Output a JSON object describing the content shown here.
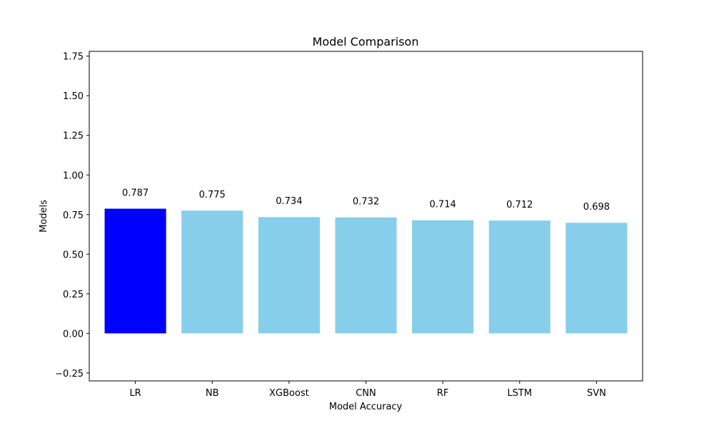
{
  "chart_data": {
    "type": "bar",
    "title": "Model Comparison",
    "xlabel": "Model Accuracy",
    "ylabel": "Models",
    "categories": [
      "LR",
      "NB",
      "XGBoost",
      "CNN",
      "RF",
      "LSTM",
      "SVN"
    ],
    "values": [
      0.787,
      0.775,
      0.734,
      0.732,
      0.714,
      0.712,
      0.698
    ],
    "value_labels": [
      "0.787",
      "0.775",
      "0.734",
      "0.732",
      "0.714",
      "0.712",
      "0.698"
    ],
    "bar_colors": [
      "#0000ff",
      "#87ceeb",
      "#87ceeb",
      "#87ceeb",
      "#87ceeb",
      "#87ceeb",
      "#87ceeb"
    ],
    "ylim": [
      -0.3,
      1.78
    ],
    "yticks": [
      -0.25,
      0,
      0.25,
      0.5,
      0.75,
      1.0,
      1.25,
      1.5,
      1.75
    ],
    "ytick_labels": [
      "−0.25",
      "0.00",
      "0.25",
      "0.50",
      "0.75",
      "1.00",
      "1.25",
      "1.50",
      "1.75"
    ],
    "grid": false,
    "legend": "none"
  }
}
